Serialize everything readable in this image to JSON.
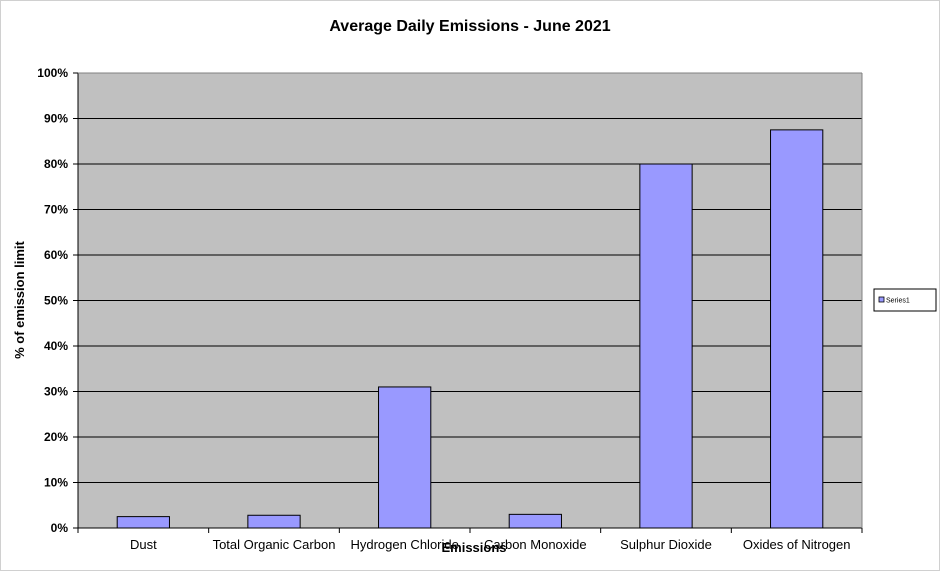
{
  "chart_data": {
    "type": "bar",
    "title": "Average Daily Emissions - June 2021",
    "xlabel": "Emissions",
    "ylabel": "% of emission limit",
    "categories": [
      "Dust",
      "Total Organic Carbon",
      "Hydrogen Chloride",
      "Carbon Monoxide",
      "Sulphur Dioxide",
      "Oxides of Nitrogen"
    ],
    "series": [
      {
        "name": "Series1",
        "values": [
          2.5,
          2.8,
          31,
          3,
          80,
          87.5
        ]
      }
    ],
    "ylim": [
      0,
      100
    ],
    "yticks": [
      0,
      10,
      20,
      30,
      40,
      50,
      60,
      70,
      80,
      90,
      100
    ],
    "ytick_labels": [
      "0%",
      "10%",
      "20%",
      "30%",
      "40%",
      "50%",
      "60%",
      "70%",
      "80%",
      "90%",
      "100%"
    ],
    "grid": true,
    "legend_position": "right",
    "colors": {
      "bar_fill": "#9999ff",
      "bar_stroke": "#000000",
      "plot_background": "#c0c0c0",
      "grid": "#000000"
    }
  }
}
